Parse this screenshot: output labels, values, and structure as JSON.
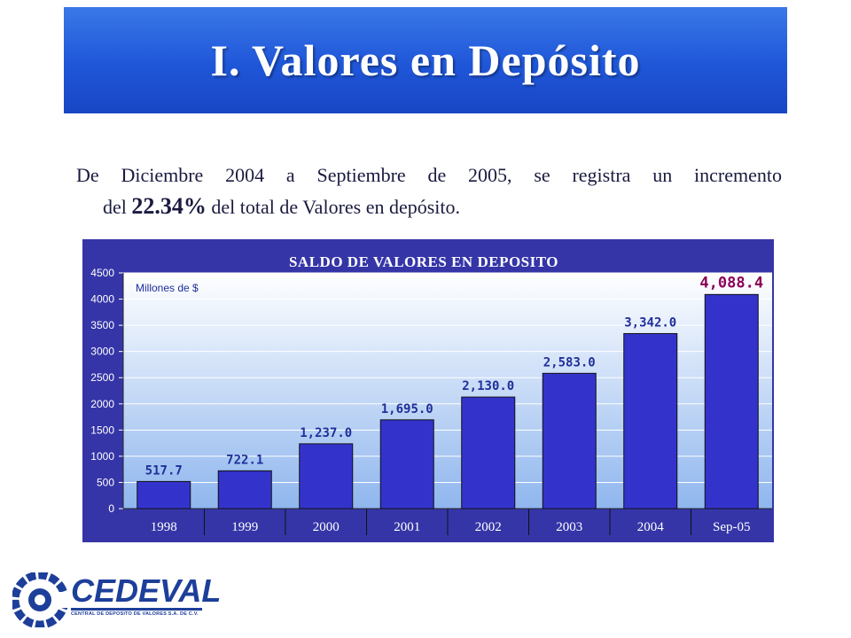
{
  "header": {
    "title": "I. Valores en Depósito"
  },
  "intro": {
    "line1": "De Diciembre 2004 a Septiembre de 2005, se registra un incremento",
    "line2_pre": "del ",
    "line2_pct": "22.34%",
    "line2_post": " del total de Valores en depósito."
  },
  "colors": {
    "banner": "#1f56d8",
    "chart_frame": "#3535a8",
    "plot_top": "#ffffff",
    "plot_bottom": "#8fb6ee",
    "bar": "#3333cc",
    "label": "#1f2f9a",
    "highlight_label": "#8b0057"
  },
  "chart_data": {
    "type": "bar",
    "title": "SALDO DE VALORES EN DEPOSITO",
    "annotation": "Millones de $",
    "categories": [
      "1998",
      "1999",
      "2000",
      "2001",
      "2002",
      "2003",
      "2004",
      "Sep-05"
    ],
    "values": [
      517.7,
      722.1,
      1237.0,
      1695.0,
      2130.0,
      2583.0,
      3342.0,
      4088.4
    ],
    "value_labels": [
      "517.7",
      "722.1",
      "1,237.0",
      "1,695.0",
      "2,130.0",
      "2,583.0",
      "3,342.0",
      "4,088.4"
    ],
    "highlight_index": 7,
    "ylim": [
      0,
      4500
    ],
    "yticks": [
      0,
      500,
      1000,
      1500,
      2000,
      2500,
      3000,
      3500,
      4000,
      4500
    ],
    "grid": true,
    "xlabel": "",
    "ylabel": ""
  },
  "logo": {
    "word": "CEDEVAL",
    "subtitle": "CENTRAL DE DEPOSITO DE VALORES S.A. DE C.V."
  }
}
